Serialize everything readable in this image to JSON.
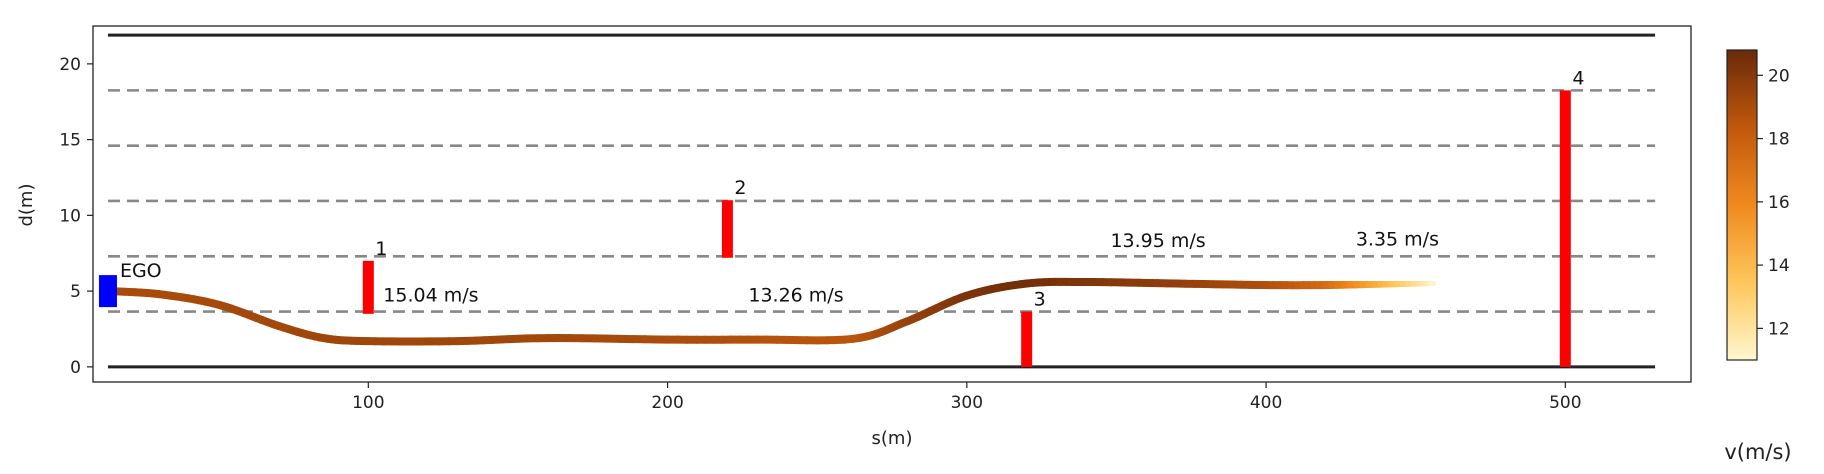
{
  "chart_data": {
    "type": "line",
    "xlabel": "s(m)",
    "ylabel": "d(m)",
    "xlim": [
      8,
      542
    ],
    "ylim": [
      -1,
      22.5
    ],
    "xticks": [
      100,
      200,
      300,
      400,
      500
    ],
    "yticks": [
      0,
      5,
      10,
      15,
      20
    ],
    "road_boundaries": [
      0,
      21.9
    ],
    "lane_lines": [
      3.65,
      7.3,
      10.95,
      14.6,
      18.25
    ],
    "ego": {
      "label": "EGO",
      "s": 13,
      "d": 5.0,
      "color": "#0000ff"
    },
    "trajectory": {
      "colorbar_label": "v(m/s)",
      "v_range": [
        11,
        20.8
      ],
      "colorbar_ticks": [
        12,
        14,
        16,
        18,
        20
      ],
      "points": [
        {
          "s": 13,
          "d": 5.0,
          "v": 19.0
        },
        {
          "s": 30,
          "d": 4.8,
          "v": 19.0
        },
        {
          "s": 50,
          "d": 4.1,
          "v": 19.1
        },
        {
          "s": 70,
          "d": 2.7,
          "v": 19.2
        },
        {
          "s": 85,
          "d": 1.9,
          "v": 19.3
        },
        {
          "s": 100,
          "d": 1.7,
          "v": 19.3
        },
        {
          "s": 130,
          "d": 1.7,
          "v": 19.3
        },
        {
          "s": 160,
          "d": 1.9,
          "v": 19.2
        },
        {
          "s": 200,
          "d": 1.8,
          "v": 19.0
        },
        {
          "s": 230,
          "d": 1.8,
          "v": 18.7
        },
        {
          "s": 262,
          "d": 1.85,
          "v": 18.5
        },
        {
          "s": 280,
          "d": 3.0,
          "v": 19.5
        },
        {
          "s": 300,
          "d": 4.7,
          "v": 20.3
        },
        {
          "s": 320,
          "d": 5.5,
          "v": 20.6
        },
        {
          "s": 340,
          "d": 5.6,
          "v": 20.2
        },
        {
          "s": 370,
          "d": 5.5,
          "v": 19.7
        },
        {
          "s": 400,
          "d": 5.4,
          "v": 18.8
        },
        {
          "s": 420,
          "d": 5.4,
          "v": 17.5
        },
        {
          "s": 440,
          "d": 5.45,
          "v": 14.0
        },
        {
          "s": 456,
          "d": 5.5,
          "v": 11.0
        }
      ]
    },
    "obstacles": [
      {
        "id": "1",
        "s": 100,
        "d_min": 3.5,
        "d_max": 7.0,
        "speed_label": "15.04 m/s"
      },
      {
        "id": "2",
        "s": 220,
        "d_min": 7.2,
        "d_max": 11.0,
        "speed_label": "13.26 m/s"
      },
      {
        "id": "3",
        "s": 320,
        "d_min": 0,
        "d_max": 3.65,
        "speed_label": "13.95 m/s"
      },
      {
        "id": "4",
        "s": 500,
        "d_min": 0,
        "d_max": 18.25,
        "speed_label": "3.35 m/s"
      }
    ],
    "speed_label_positions": [
      {
        "text_ref": 0,
        "s": 105,
        "d": 4.3
      },
      {
        "text_ref": 1,
        "s": 227,
        "d": 4.3
      },
      {
        "text_ref": 2,
        "s": 348,
        "d": 7.9
      },
      {
        "text_ref": 3,
        "s": 430,
        "d": 8.0
      }
    ]
  }
}
